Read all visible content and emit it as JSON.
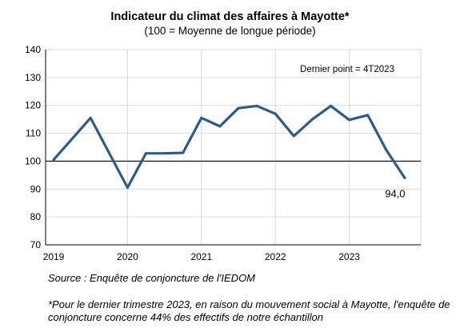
{
  "title": "Indicateur du climat des affaires à Mayotte*",
  "subtitle": "(100 = Moyenne de longue période)",
  "source": "Source : Enquête de conjoncture de l'IEDOM",
  "footnote": "*Pour le dernier trimestre 2023, en raison du mouvement social à Mayotte, l'enquête de conjoncture concerne 44% des effectifs de notre échantillon",
  "colors": {
    "line": "#2E5C8A",
    "reference": "#000000",
    "grid": "#D9D9D9"
  },
  "chart_data": {
    "type": "line",
    "title": "Indicateur du climat des affaires à Mayotte*",
    "subtitle": "(100 = Moyenne de longue période)",
    "x_labels": [
      "2019",
      "2020",
      "2021",
      "2022",
      "2023"
    ],
    "ylim": [
      70,
      140
    ],
    "yticks": [
      70,
      80,
      90,
      100,
      110,
      120,
      130,
      140
    ],
    "reference_line": 100,
    "grid": "horizontal and vertical",
    "series": [
      {
        "values": [
          100.5,
          108,
          115.5,
          103,
          90.5,
          102.8,
          102.8,
          103,
          115.5,
          112.5,
          119,
          119.8,
          117,
          109,
          115,
          119.8,
          114.8,
          116.5,
          104,
          94.0
        ]
      }
    ],
    "annotation_top": "Dernier point = 4T2023",
    "last_value_label": "94,0"
  }
}
